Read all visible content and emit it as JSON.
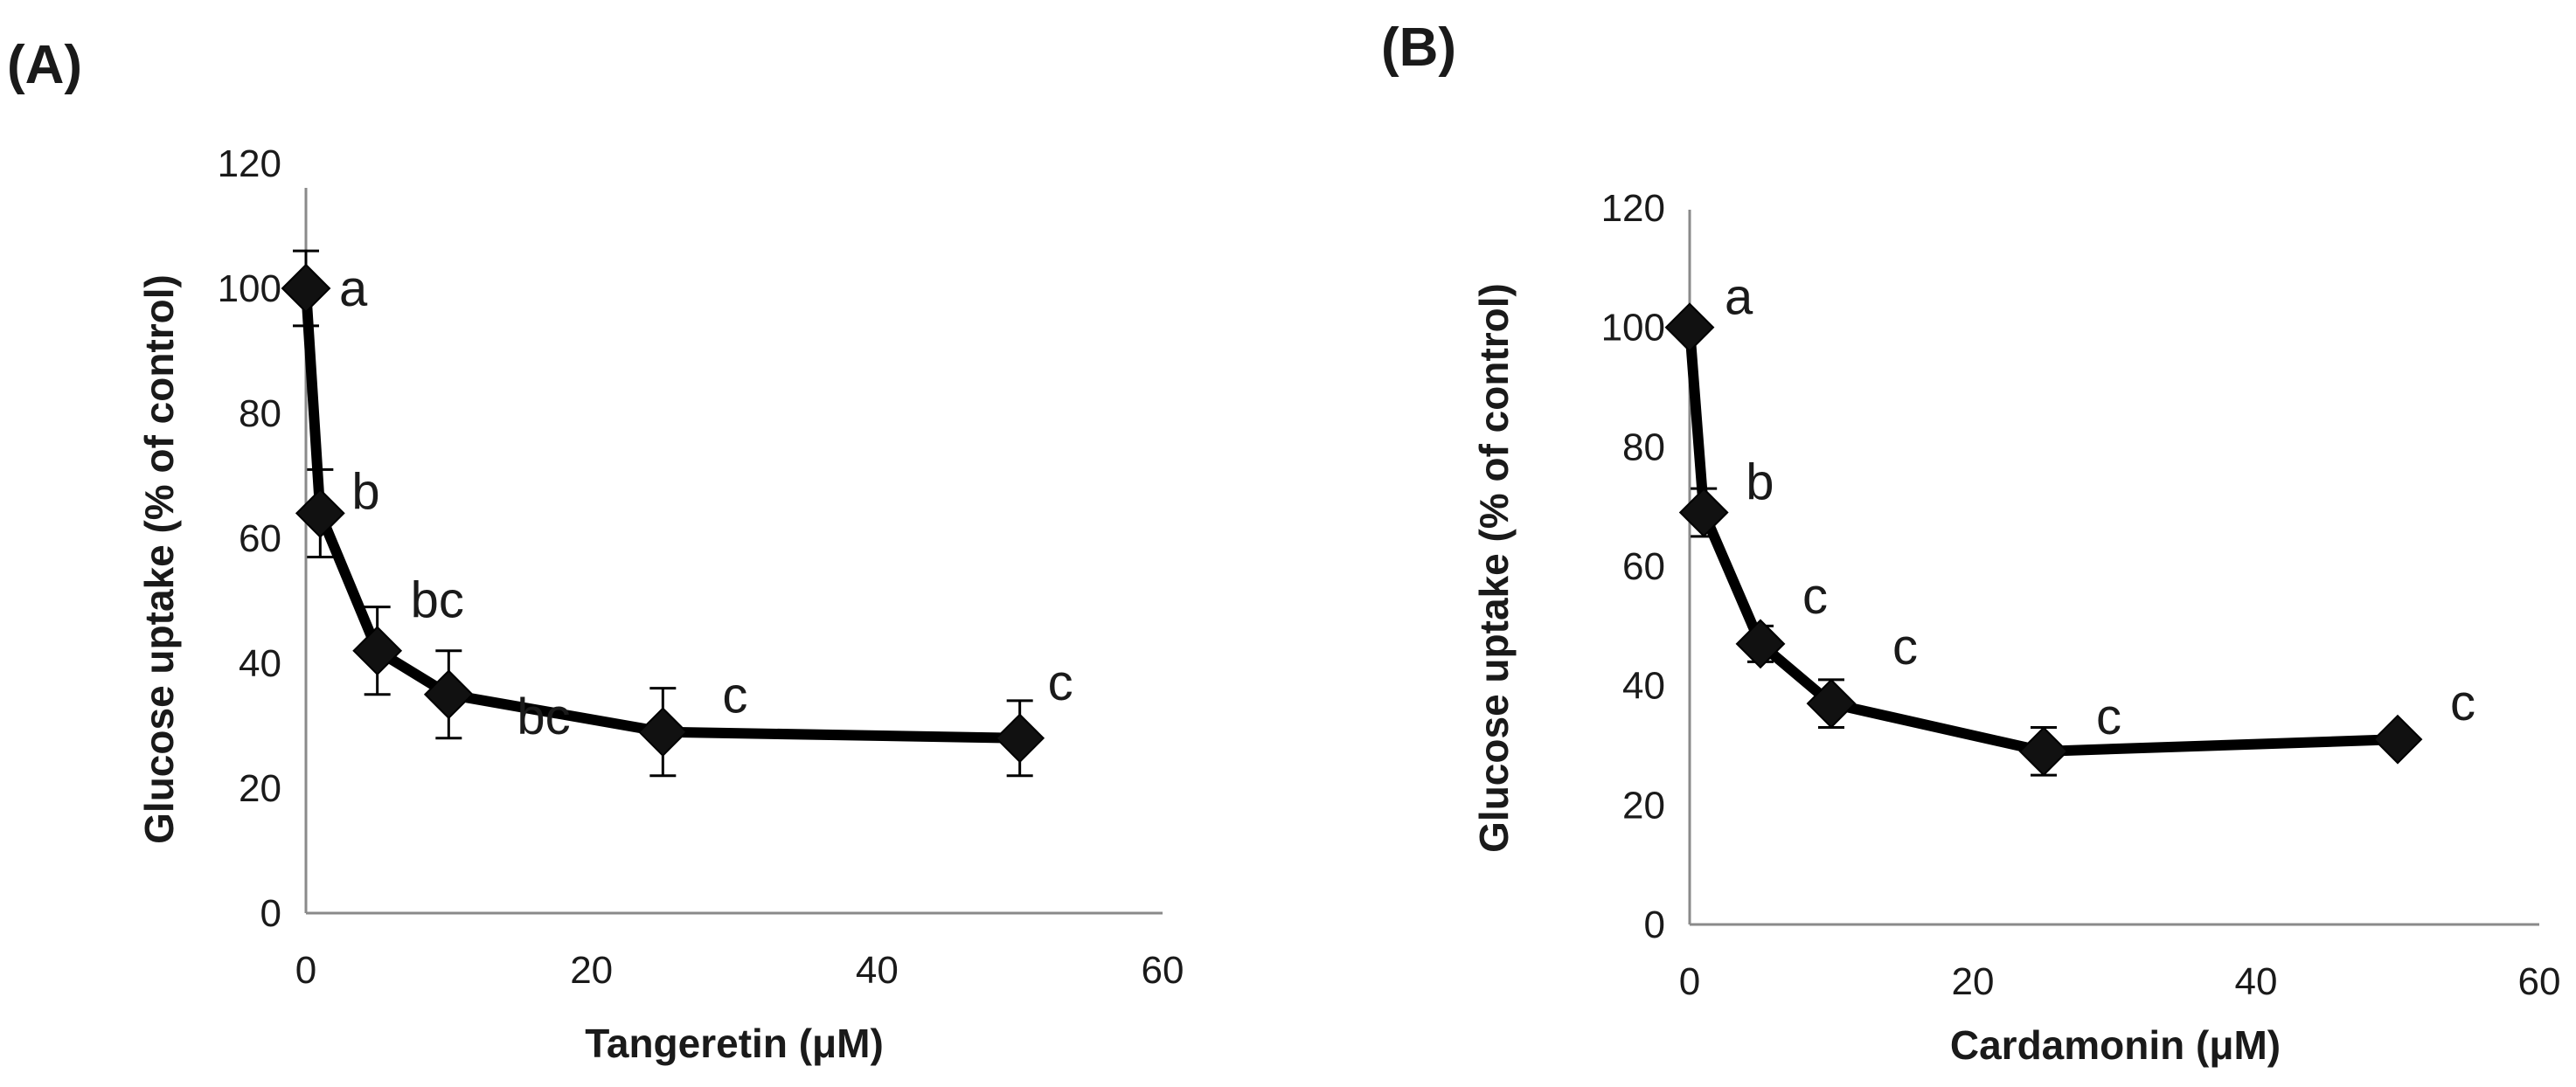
{
  "chart_data": [
    {
      "type": "line",
      "panel_label": "(A)",
      "title": "",
      "xlabel": "Tangeretin (μM)",
      "ylabel": "Glucose uptake (% of control)",
      "xlim": [
        0,
        60
      ],
      "ylim": [
        0,
        120
      ],
      "xticks": [
        0,
        20,
        40,
        60
      ],
      "yticks": [
        0,
        20,
        40,
        60,
        80,
        100,
        120
      ],
      "grid": false,
      "series": [
        {
          "name": "Tangeretin",
          "x": [
            0,
            1,
            5,
            10,
            25,
            50
          ],
          "y": [
            100,
            64,
            42,
            35,
            29,
            28
          ],
          "error": [
            6,
            7,
            7,
            7,
            7,
            6
          ],
          "significance_labels": [
            "a",
            "b",
            "bc",
            "bc",
            "c",
            "c"
          ]
        }
      ]
    },
    {
      "type": "line",
      "panel_label": "(B)",
      "title": "",
      "xlabel": "Cardamonin (μM)",
      "ylabel": "Glucose uptake (% of control)",
      "xlim": [
        0,
        60
      ],
      "ylim": [
        0,
        120
      ],
      "xticks": [
        0,
        20,
        40,
        60
      ],
      "yticks": [
        0,
        20,
        40,
        60,
        80,
        100,
        120
      ],
      "grid": false,
      "series": [
        {
          "name": "Cardamonin",
          "x": [
            0,
            1,
            5,
            10,
            25,
            50
          ],
          "y": [
            100,
            69,
            47,
            37,
            29,
            31
          ],
          "error": [
            0,
            4,
            3,
            4,
            4,
            0
          ],
          "significance_labels": [
            "a",
            "b",
            "c",
            "c",
            "c",
            "c"
          ]
        }
      ]
    }
  ]
}
